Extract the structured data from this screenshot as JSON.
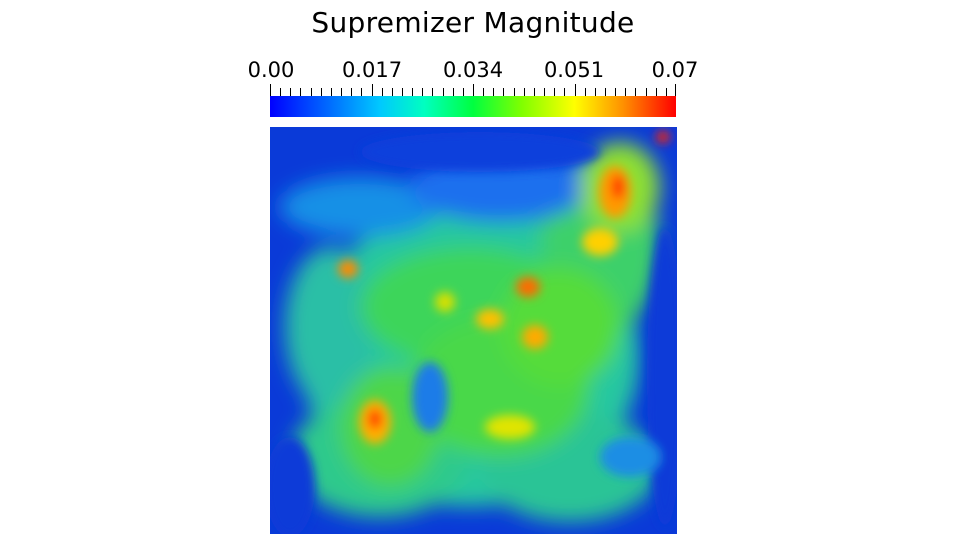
{
  "title": "Supremizer Magnitude",
  "colorbar": {
    "labels": [
      "0.00",
      "0.017",
      "0.034",
      "0.051",
      "0.07"
    ],
    "min": 0,
    "max": 0.07,
    "colors": [
      "#0000ff",
      "#00c8ff",
      "#00ff40",
      "#ffff00",
      "#ff0000"
    ]
  }
}
